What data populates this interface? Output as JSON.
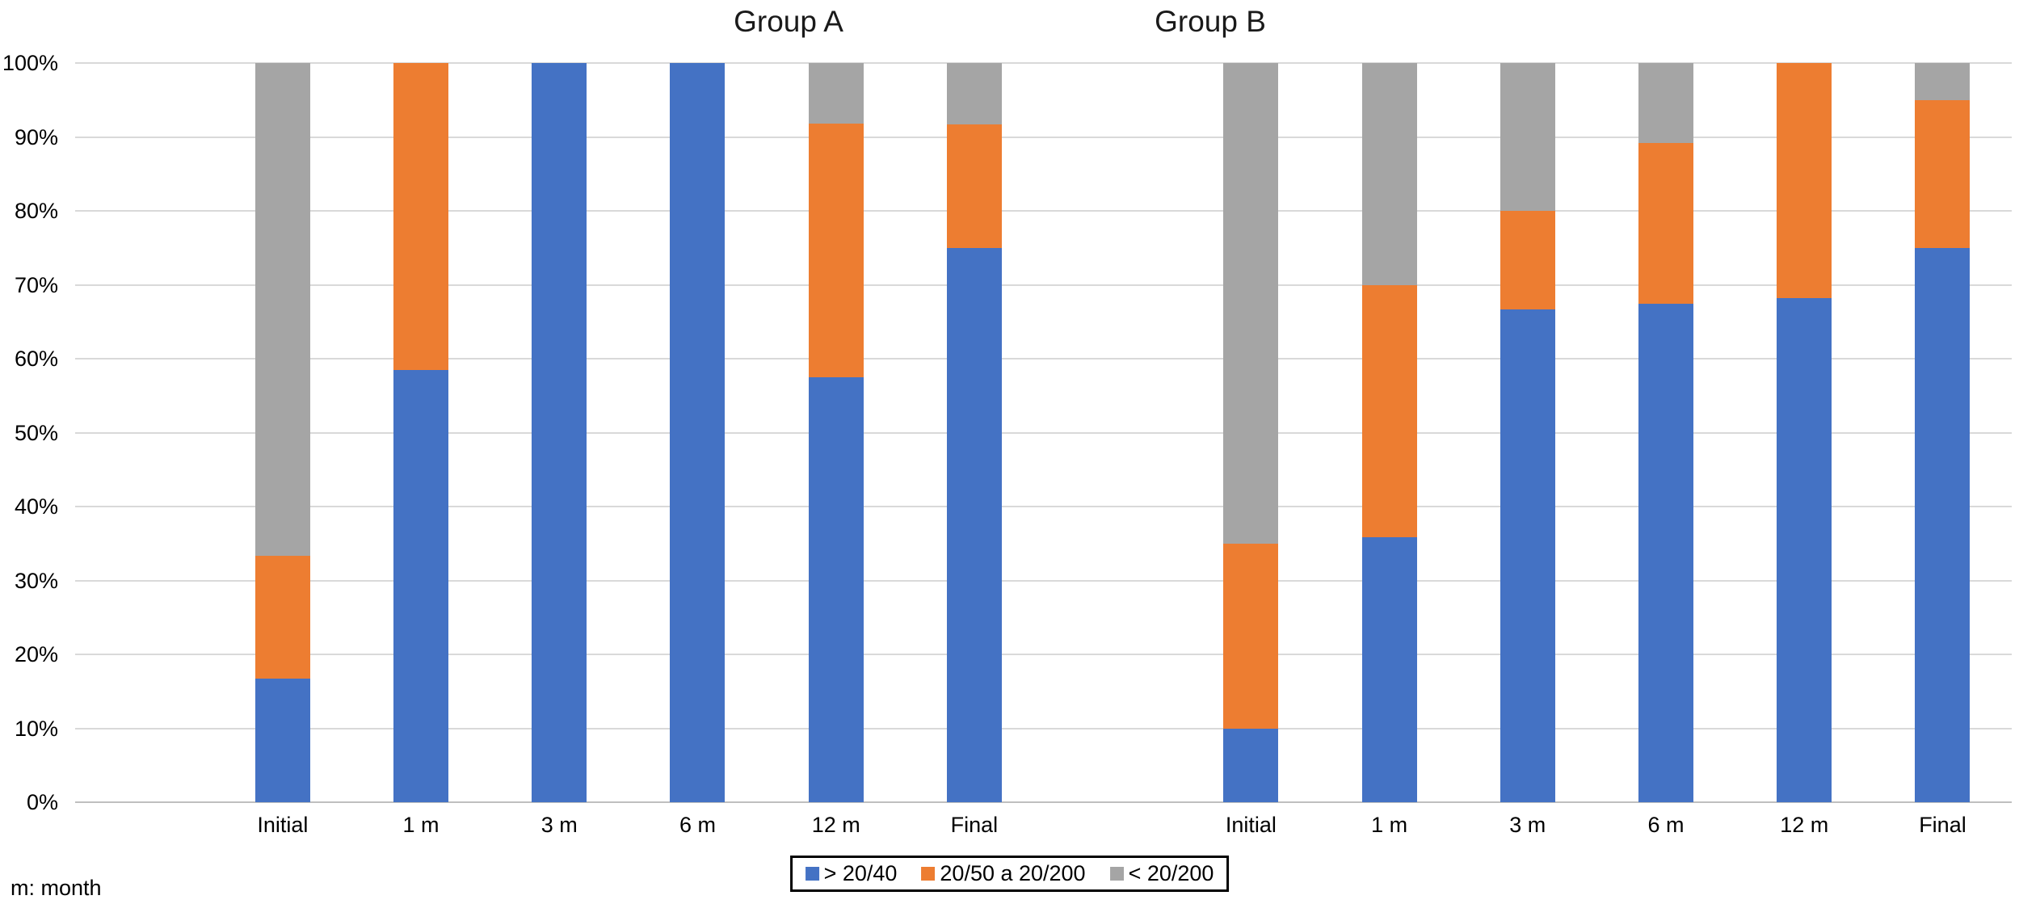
{
  "titles": {
    "group_a": "Group A",
    "group_b": "Group B"
  },
  "footnote": "m: month",
  "colors": {
    "blue": "#4472C4",
    "orange": "#ED7D31",
    "gray": "#A5A5A5",
    "gridline": "#D9D9D9"
  },
  "legend": {
    "position": "bottom-center",
    "items": [
      {
        "label": "> 20/40",
        "color": "#4472C4"
      },
      {
        "label": "20/50 a 20/200",
        "color": "#ED7D31"
      },
      {
        "label": "< 20/200",
        "color": "#A5A5A5"
      }
    ]
  },
  "y_axis": {
    "min": 0,
    "max": 100,
    "step": 10,
    "tick_labels": [
      "0%",
      "10%",
      "20%",
      "30%",
      "40%",
      "50%",
      "60%",
      "70%",
      "80%",
      "90%",
      "100%"
    ]
  },
  "chart_data": {
    "type": "bar",
    "stacked": true,
    "unit": "percent",
    "ylim": [
      0,
      100
    ],
    "grid": true,
    "legend_position": "bottom",
    "groups": [
      {
        "name": "Group A",
        "categories": [
          "Initial",
          "1 m",
          "3 m",
          "6 m",
          "12 m",
          "Final"
        ],
        "series": [
          {
            "name": "> 20/40",
            "color": "#4472C4",
            "values": [
              16.7,
              58.5,
              100,
              100,
              57.5,
              75
            ]
          },
          {
            "name": "20/50 a 20/200",
            "color": "#ED7D31",
            "values": [
              16.6,
              41.5,
              0,
              0,
              34.3,
              16.7
            ]
          },
          {
            "name": "< 20/200",
            "color": "#A5A5A5",
            "values": [
              66.7,
              0,
              0,
              0,
              8.2,
              8.3
            ]
          }
        ]
      },
      {
        "name": "Group B",
        "categories": [
          "Initial",
          "1 m",
          "3 m",
          "6 m",
          "12 m",
          "Final"
        ],
        "series": [
          {
            "name": "> 20/40",
            "color": "#4472C4",
            "values": [
              10,
              35.8,
              66.7,
              67.4,
              68.2,
              75
            ]
          },
          {
            "name": "20/50 a 20/200",
            "color": "#ED7D31",
            "values": [
              25,
              34.2,
              13.3,
              21.8,
              31.8,
              20
            ]
          },
          {
            "name": "< 20/200",
            "color": "#A5A5A5",
            "values": [
              65,
              30,
              20,
              10.8,
              0,
              5
            ]
          }
        ]
      }
    ]
  }
}
